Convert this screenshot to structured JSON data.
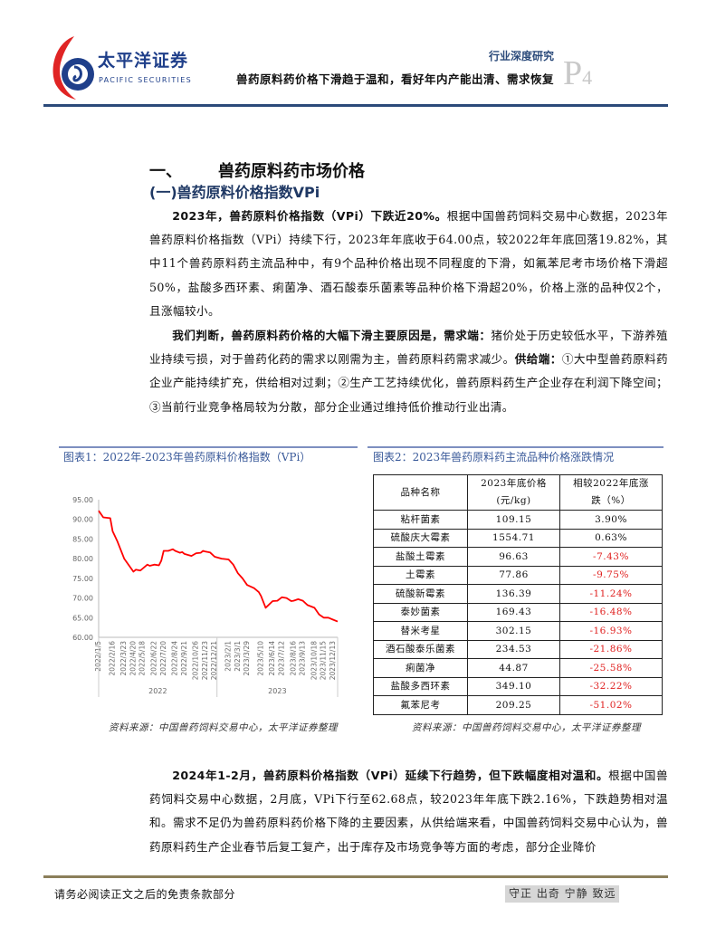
{
  "header": {
    "logo_cn": "太平洋证券",
    "logo_en": "PACIFIC SECURITIES",
    "report_type": "行业深度研究",
    "report_title": "兽药原料药价格下滑趋于温和，看好年内产能出清、需求恢复",
    "page_prefix": "P",
    "page_number": "4"
  },
  "section": {
    "number": "一、",
    "title": "兽药原料药市场价格",
    "subtitle": "(一)兽药原料价格指数VPi"
  },
  "paragraphs": [
    {
      "bold": "2023年，兽药原料价格指数（VPi）下跌近20%。",
      "text": "根据中国兽药饲料交易中心数据，2023年兽药原料价格指数（VPi）持续下行，2023年年底收于64.00点，较2022年年底回落19.82%，其中11个兽药原料药主流品种中，有9个品种价格出现不同程度的下滑，如氟苯尼考市场价格下滑超50%，盐酸多西环素、痢菌净、酒石酸泰乐菌素等品种价格下滑超20%，价格上涨的品种仅2个，且涨幅较小。"
    },
    {
      "bold": "我们判断，兽药原料药价格的大幅下滑主要原因是，需求端：",
      "text": "猪价处于历史较低水平，下游养殖业持续亏损，对于兽药化药的需求以刚需为主，兽药原料药需求减少。",
      "bold2": "供给端：",
      "text2": "①大中型兽药原料药企业产能持续扩充，供给相对过剩；②生产工艺持续优化，兽药原料药生产企业存在利润下降空间；③当前行业竞争格局较为分散，部分企业通过维持低价推动行业出清。"
    },
    {
      "bold": "2024年1-2月，兽药原料价格指数（VPi）延续下行趋势，但下跌幅度相对温和。",
      "text": "根据中国兽药饲料交易中心数据，2月底，VPi下行至62.68点，较2023年年底下跌2.16%，下跌趋势相对温和。需求不足仍为兽药原料药价格下降的主要因素，从供给端来看，中国兽药饲料交易中心认为，兽药原料药生产企业春节后复工复产，出于库存及市场竞争等方面的考虑，部分企业降价"
    }
  ],
  "figure1": {
    "title": "图表1：2022年-2023年兽药原料价格指数（VPi）",
    "source": "资料来源：中国兽药饲料交易中心，太平洋证券整理"
  },
  "figure2": {
    "title": "图表2：2023年兽药原料药主流品种价格涨跌情况",
    "source": "资料来源：中国兽药饲料交易中心，太平洋证券整理",
    "headers": [
      "品种名称",
      "2023年底价格",
      "(元/kg)",
      "相较2022年底涨",
      "跌（%）"
    ],
    "rows": [
      {
        "name": "粘杆菌素",
        "price": "109.15",
        "change": "3.90%",
        "negative": false
      },
      {
        "name": "硫酸庆大霉素",
        "price": "1554.71",
        "change": "0.63%",
        "negative": false
      },
      {
        "name": "盐酸土霉素",
        "price": "96.63",
        "change": "-7.43%",
        "negative": true
      },
      {
        "name": "土霉素",
        "price": "77.86",
        "change": "-9.75%",
        "negative": true
      },
      {
        "name": "硫酸新霉素",
        "price": "136.39",
        "change": "-11.24%",
        "negative": true
      },
      {
        "name": "泰妙菌素",
        "price": "169.43",
        "change": "-16.48%",
        "negative": true
      },
      {
        "name": "替米考星",
        "price": "302.15",
        "change": "-16.93%",
        "negative": true
      },
      {
        "name": "酒石酸泰乐菌素",
        "price": "234.53",
        "change": "-21.86%",
        "negative": true
      },
      {
        "name": "痢菌净",
        "price": "44.87",
        "change": "-25.58%",
        "negative": true
      },
      {
        "name": "盐酸多西环素",
        "price": "349.10",
        "change": "-32.22%",
        "negative": true
      },
      {
        "name": "氟苯尼考",
        "price": "209.25",
        "change": "-51.02%",
        "negative": true
      }
    ],
    "negative_color": "#e0201f"
  },
  "chart_data": {
    "type": "line",
    "title": "",
    "xlabel": "",
    "ylabel": "",
    "ylim": [
      60,
      95
    ],
    "yticks": [
      "60.00",
      "65.00",
      "70.00",
      "75.00",
      "80.00",
      "85.00",
      "90.00",
      "95.00"
    ],
    "xticks": [
      "2022/1/5",
      "2022/2/16",
      "2022/3/23",
      "2022/4/20",
      "2022/5/18",
      "2022/6/22",
      "2022/7/20",
      "2022/8/24",
      "2022/9/21",
      "2022/10/26",
      "2022/11/23",
      "2022/12/21",
      "2023/2/1",
      "2023/3/1",
      "2023/3/29",
      "2023/5/10",
      "2023/6/14",
      "2023/7/12",
      "2023/8/16",
      "2023/9/13",
      "2023/10/18",
      "2023/11/15",
      "2023/12/13"
    ],
    "year_groups": [
      "2022",
      "2023"
    ],
    "grid": false,
    "line_color": "#ff0000",
    "series": [
      {
        "x": [
          "2022/1/5",
          "2022/1/19",
          "2022/2/9",
          "2022/2/16",
          "2022/3/2",
          "2022/3/23",
          "2022/4/20",
          "2022/4/27",
          "2022/5/11",
          "2022/5/18",
          "2022/6/1",
          "2022/6/8",
          "2022/6/22",
          "2022/7/6",
          "2022/7/13",
          "2022/7/20",
          "2022/8/3",
          "2022/8/17",
          "2022/8/24",
          "2022/9/7",
          "2022/9/14",
          "2022/9/21",
          "2022/10/12",
          "2022/10/26",
          "2022/11/9",
          "2022/11/16",
          "2022/11/23",
          "2022/12/7",
          "2022/12/21",
          "2023/1/11",
          "2023/2/1",
          "2023/2/15",
          "2023/3/1",
          "2023/3/15",
          "2023/3/29",
          "2023/4/19",
          "2023/5/3",
          "2023/5/10",
          "2023/5/24",
          "2023/6/14",
          "2023/6/28",
          "2023/7/12",
          "2023/7/26",
          "2023/8/9",
          "2023/8/16",
          "2023/8/30",
          "2023/9/13",
          "2023/9/27",
          "2023/10/18",
          "2023/11/1",
          "2023/11/15",
          "2023/11/29",
          "2023/12/13",
          "2023/12/27"
        ],
        "y": [
          92.2,
          90.5,
          90.3,
          87.0,
          84.5,
          80.0,
          76.7,
          77.2,
          77.0,
          77.5,
          78.5,
          78.2,
          78.5,
          78.3,
          79.5,
          82.0,
          82.0,
          82.4,
          82.0,
          81.5,
          81.7,
          81.2,
          80.7,
          81.4,
          81.5,
          82.0,
          81.8,
          81.6,
          80.5,
          80.0,
          79.8,
          78.5,
          76.3,
          75.0,
          73.3,
          72.5,
          71.5,
          70.5,
          67.5,
          69.2,
          69.3,
          70.2,
          70.0,
          69.2,
          69.3,
          69.7,
          69.3,
          68.2,
          67.5,
          65.8,
          65.0,
          65.0,
          64.5,
          64.0
        ]
      }
    ]
  },
  "footer": {
    "disclaimer": "请务必阅读正文之后的免责条款部分",
    "motto": "守正 出奇 宁静 致远"
  }
}
